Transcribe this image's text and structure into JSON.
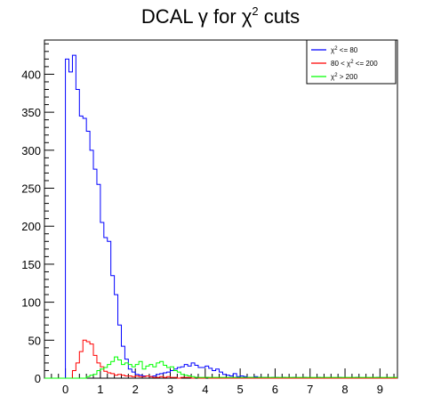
{
  "chart_data": {
    "type": "histogram",
    "title_parts": {
      "prefix": "DCAL ",
      "gamma": "γ",
      "middle": " for ",
      "chi": "χ",
      "sup": "2",
      "suffix": " cuts"
    },
    "xlim": [
      -0.6,
      9.5
    ],
    "ylim": [
      0,
      445
    ],
    "xticks": [
      0,
      1,
      2,
      3,
      4,
      5,
      6,
      7,
      8,
      9
    ],
    "yticks": [
      0,
      50,
      100,
      150,
      200,
      250,
      300,
      350,
      400
    ],
    "bin_start": -0.6,
    "bin_width": 0.1,
    "grid": false,
    "legend_position": "top-right",
    "series": [
      {
        "name": "χ2 <= 80",
        "legend_text": {
          "chi": "χ",
          "sup": "2",
          "rest": " <= 80"
        },
        "color": "#0000ff",
        "values": [
          0,
          0,
          0,
          0,
          0,
          0,
          420,
          403,
          425,
          380,
          345,
          342,
          325,
          300,
          275,
          255,
          205,
          185,
          180,
          135,
          110,
          70,
          42,
          25,
          12,
          8,
          5,
          4,
          3,
          3,
          2,
          3,
          5,
          6,
          7,
          8,
          10,
          12,
          14,
          15,
          18,
          16,
          20,
          17,
          14,
          14,
          16,
          13,
          10,
          12,
          8,
          5,
          4,
          3,
          6,
          2,
          3,
          2,
          1,
          1,
          2,
          1,
          1,
          1,
          0,
          1,
          1,
          0,
          1,
          0,
          0,
          1,
          0,
          0,
          1,
          0,
          0,
          0,
          1,
          0,
          0,
          0,
          0,
          0,
          1,
          0,
          0,
          0,
          0,
          1,
          0,
          0,
          0,
          0,
          0,
          1,
          0,
          0,
          0,
          0,
          0
        ]
      },
      {
        "name": "80 < χ2 <= 200",
        "legend_text": {
          "pre": "80 < ",
          "chi": "χ",
          "sup": "2",
          "rest": " <= 200"
        },
        "color": "#ff0000",
        "values": [
          0,
          0,
          0,
          0,
          0,
          0,
          0,
          0,
          10,
          20,
          35,
          50,
          48,
          45,
          30,
          20,
          15,
          9,
          7,
          6,
          4,
          5,
          4,
          3,
          3,
          2,
          3,
          2,
          2,
          3,
          2,
          1,
          1,
          2,
          1,
          2,
          1,
          1,
          0,
          1,
          1,
          1,
          0,
          1,
          0,
          0,
          1,
          0,
          0,
          0,
          0,
          0,
          0,
          0,
          0,
          0,
          0,
          0,
          0,
          0,
          0,
          0,
          0,
          0,
          0,
          0,
          0,
          0,
          0,
          0,
          0,
          0,
          0,
          0,
          0,
          0,
          0,
          0,
          0,
          0,
          0,
          0,
          0,
          0,
          0,
          0,
          0,
          0,
          0,
          0,
          0,
          0,
          0,
          0,
          0,
          0,
          0,
          0,
          0,
          0,
          0
        ]
      },
      {
        "name": "χ2 > 200",
        "legend_text": {
          "chi": "χ",
          "sup": "2",
          "rest": " > 200"
        },
        "color": "#00ff00",
        "values": [
          0,
          0,
          0,
          0,
          0,
          0,
          0,
          0,
          0,
          0,
          0,
          0,
          2,
          4,
          5,
          10,
          12,
          14,
          18,
          22,
          28,
          24,
          18,
          20,
          18,
          15,
          18,
          22,
          12,
          16,
          18,
          15,
          20,
          22,
          17,
          14,
          15,
          10,
          8,
          5,
          4,
          3,
          2,
          1,
          1,
          1,
          1,
          1,
          1,
          1,
          1,
          1,
          1,
          1,
          1,
          1,
          1,
          1,
          1,
          1,
          1,
          1,
          1,
          1,
          1,
          1,
          1,
          1,
          1,
          1,
          1,
          1,
          1,
          1,
          1,
          1,
          1,
          1,
          1,
          1,
          1,
          1,
          1,
          1,
          1,
          1,
          1,
          1,
          1,
          1,
          1,
          1,
          1,
          1,
          1,
          1,
          1,
          1,
          1,
          1,
          1
        ]
      }
    ]
  }
}
